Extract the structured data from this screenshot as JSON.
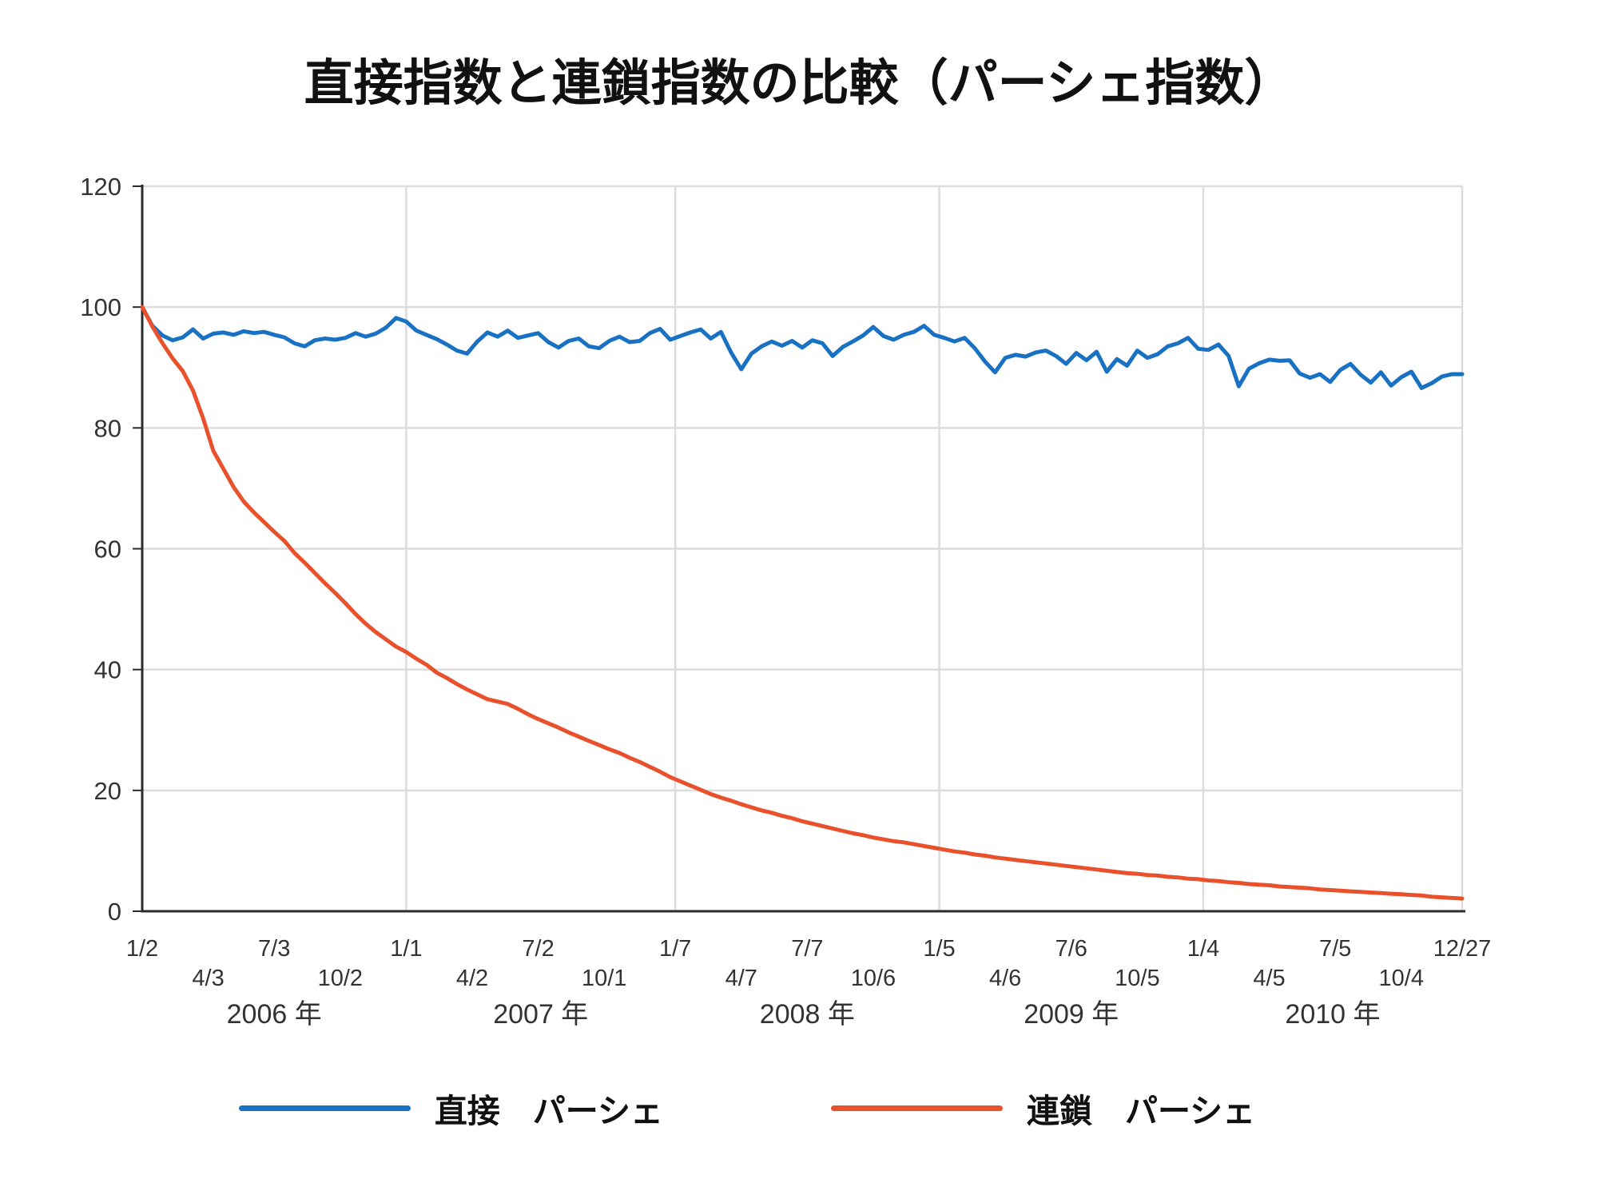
{
  "title": "直接指数と連鎖指数の比較（パーシェ指数）",
  "legend": [
    {
      "label": "直接　パーシェ",
      "color": "#1871c3"
    },
    {
      "label": "連鎖　パーシェ",
      "color": "#e8512b"
    }
  ],
  "chart_data": {
    "type": "line",
    "title": "直接指数と連鎖指数の比較（パーシェ指数）",
    "xlabel": "",
    "ylabel": "",
    "ylim": [
      0,
      120
    ],
    "y_ticks": [
      0,
      20,
      40,
      60,
      80,
      100,
      120
    ],
    "grid": true,
    "legend_position": "bottom",
    "x_unit": "weeks since 2006-01-02",
    "week_start": 0,
    "week_step": 2,
    "x_max_week": 260,
    "x_ticks": [
      {
        "label": "1/2",
        "week": 0,
        "row": "upper"
      },
      {
        "label": "4/3",
        "week": 13,
        "row": "lower"
      },
      {
        "label": "7/3",
        "week": 26,
        "row": "upper"
      },
      {
        "label": "10/2",
        "week": 39,
        "row": "lower"
      },
      {
        "label": "1/1",
        "week": 52,
        "row": "upper"
      },
      {
        "label": "4/2",
        "week": 65,
        "row": "lower"
      },
      {
        "label": "7/2",
        "week": 78,
        "row": "upper"
      },
      {
        "label": "10/1",
        "week": 91,
        "row": "lower"
      },
      {
        "label": "1/7",
        "week": 105,
        "row": "upper"
      },
      {
        "label": "4/7",
        "week": 118,
        "row": "lower"
      },
      {
        "label": "7/7",
        "week": 131,
        "row": "upper"
      },
      {
        "label": "10/6",
        "week": 144,
        "row": "lower"
      },
      {
        "label": "1/5",
        "week": 157,
        "row": "upper"
      },
      {
        "label": "4/6",
        "week": 170,
        "row": "lower"
      },
      {
        "label": "7/6",
        "week": 183,
        "row": "upper"
      },
      {
        "label": "10/5",
        "week": 196,
        "row": "lower"
      },
      {
        "label": "1/4",
        "week": 209,
        "row": "upper"
      },
      {
        "label": "4/5",
        "week": 222,
        "row": "lower"
      },
      {
        "label": "7/5",
        "week": 235,
        "row": "upper"
      },
      {
        "label": "10/4",
        "week": 248,
        "row": "lower"
      },
      {
        "label": "12/27",
        "week": 260,
        "row": "upper"
      }
    ],
    "year_labels": [
      {
        "label": "2006 年",
        "center_week": 26
      },
      {
        "label": "2007 年",
        "center_week": 78.5
      },
      {
        "label": "2008 年",
        "center_week": 131
      },
      {
        "label": "2009 年",
        "center_week": 183
      },
      {
        "label": "2010 年",
        "center_week": 234.5
      }
    ],
    "vertical_gridlines_weeks": [
      52,
      105,
      157,
      209,
      260
    ],
    "colors": {
      "grid": "#dcdcdc",
      "axis": "#2b2b2b",
      "tick_text": "#333333"
    },
    "series": [
      {
        "name": "直接　パーシェ",
        "color": "#1871c3",
        "values": [
          100,
          96.9,
          95.3,
          94.5,
          95.0,
          96.3,
          94.8,
          95.6,
          95.8,
          95.4,
          96.0,
          95.7,
          95.9,
          95.4,
          95.0,
          94.0,
          93.5,
          94.5,
          94.8,
          94.6,
          94.9,
          95.7,
          95.1,
          95.6,
          96.6,
          98.2,
          97.6,
          96.1,
          95.4,
          94.7,
          93.8,
          92.8,
          92.3,
          94.3,
          95.8,
          95.1,
          96.1,
          94.9,
          95.3,
          95.7,
          94.2,
          93.3,
          94.4,
          94.8,
          93.5,
          93.2,
          94.4,
          95.1,
          94.2,
          94.4,
          95.7,
          96.4,
          94.6,
          95.2,
          95.8,
          96.3,
          94.8,
          95.9,
          92.5,
          89.7,
          92.3,
          93.5,
          94.3,
          93.6,
          94.4,
          93.3,
          94.5,
          94.0,
          91.9,
          93.4,
          94.3,
          95.3,
          96.7,
          95.2,
          94.6,
          95.4,
          95.9,
          96.9,
          95.4,
          94.9,
          94.3,
          94.9,
          93.2,
          91.0,
          89.2,
          91.6,
          92.1,
          91.8,
          92.5,
          92.8,
          91.9,
          90.6,
          92.4,
          91.2,
          92.6,
          89.3,
          91.4,
          90.3,
          92.8,
          91.6,
          92.2,
          93.5,
          94.0,
          94.9,
          93.1,
          92.9,
          93.8,
          91.9,
          86.9,
          89.8,
          90.7,
          91.3,
          91.1,
          91.2,
          89.0,
          88.3,
          88.9,
          87.6,
          89.6,
          90.6,
          88.8,
          87.5,
          89.2,
          87.0,
          88.4,
          89.3,
          86.6,
          87.4,
          88.5,
          88.9,
          88.9
        ]
      },
      {
        "name": "連鎖　パーシェ",
        "color": "#e8512b",
        "values": [
          100,
          96.8,
          94.0,
          91.5,
          89.4,
          86.2,
          81.6,
          76.2,
          73.2,
          70.2,
          67.8,
          66.0,
          64.4,
          62.8,
          61.3,
          59.3,
          57.7,
          56.0,
          54.3,
          52.7,
          51.0,
          49.2,
          47.6,
          46.2,
          45.0,
          43.8,
          42.9,
          41.8,
          40.8,
          39.5,
          38.6,
          37.6,
          36.7,
          35.9,
          35.1,
          34.7,
          34.3,
          33.5,
          32.6,
          31.8,
          31.1,
          30.4,
          29.6,
          28.9,
          28.2,
          27.5,
          26.8,
          26.2,
          25.4,
          24.7,
          23.9,
          23.1,
          22.2,
          21.5,
          20.8,
          20.1,
          19.4,
          18.8,
          18.3,
          17.7,
          17.2,
          16.7,
          16.3,
          15.8,
          15.4,
          14.9,
          14.5,
          14.1,
          13.7,
          13.3,
          12.9,
          12.6,
          12.2,
          11.9,
          11.6,
          11.4,
          11.1,
          10.8,
          10.5,
          10.2,
          9.9,
          9.7,
          9.4,
          9.2,
          8.9,
          8.7,
          8.5,
          8.3,
          8.1,
          7.9,
          7.7,
          7.5,
          7.3,
          7.1,
          6.9,
          6.7,
          6.5,
          6.3,
          6.2,
          6.0,
          5.9,
          5.7,
          5.6,
          5.4,
          5.3,
          5.1,
          5.0,
          4.8,
          4.7,
          4.5,
          4.4,
          4.3,
          4.1,
          4.0,
          3.9,
          3.8,
          3.6,
          3.5,
          3.4,
          3.3,
          3.2,
          3.1,
          3.0,
          2.9,
          2.8,
          2.7,
          2.6,
          2.4,
          2.3,
          2.2,
          2.1
        ]
      }
    ]
  }
}
